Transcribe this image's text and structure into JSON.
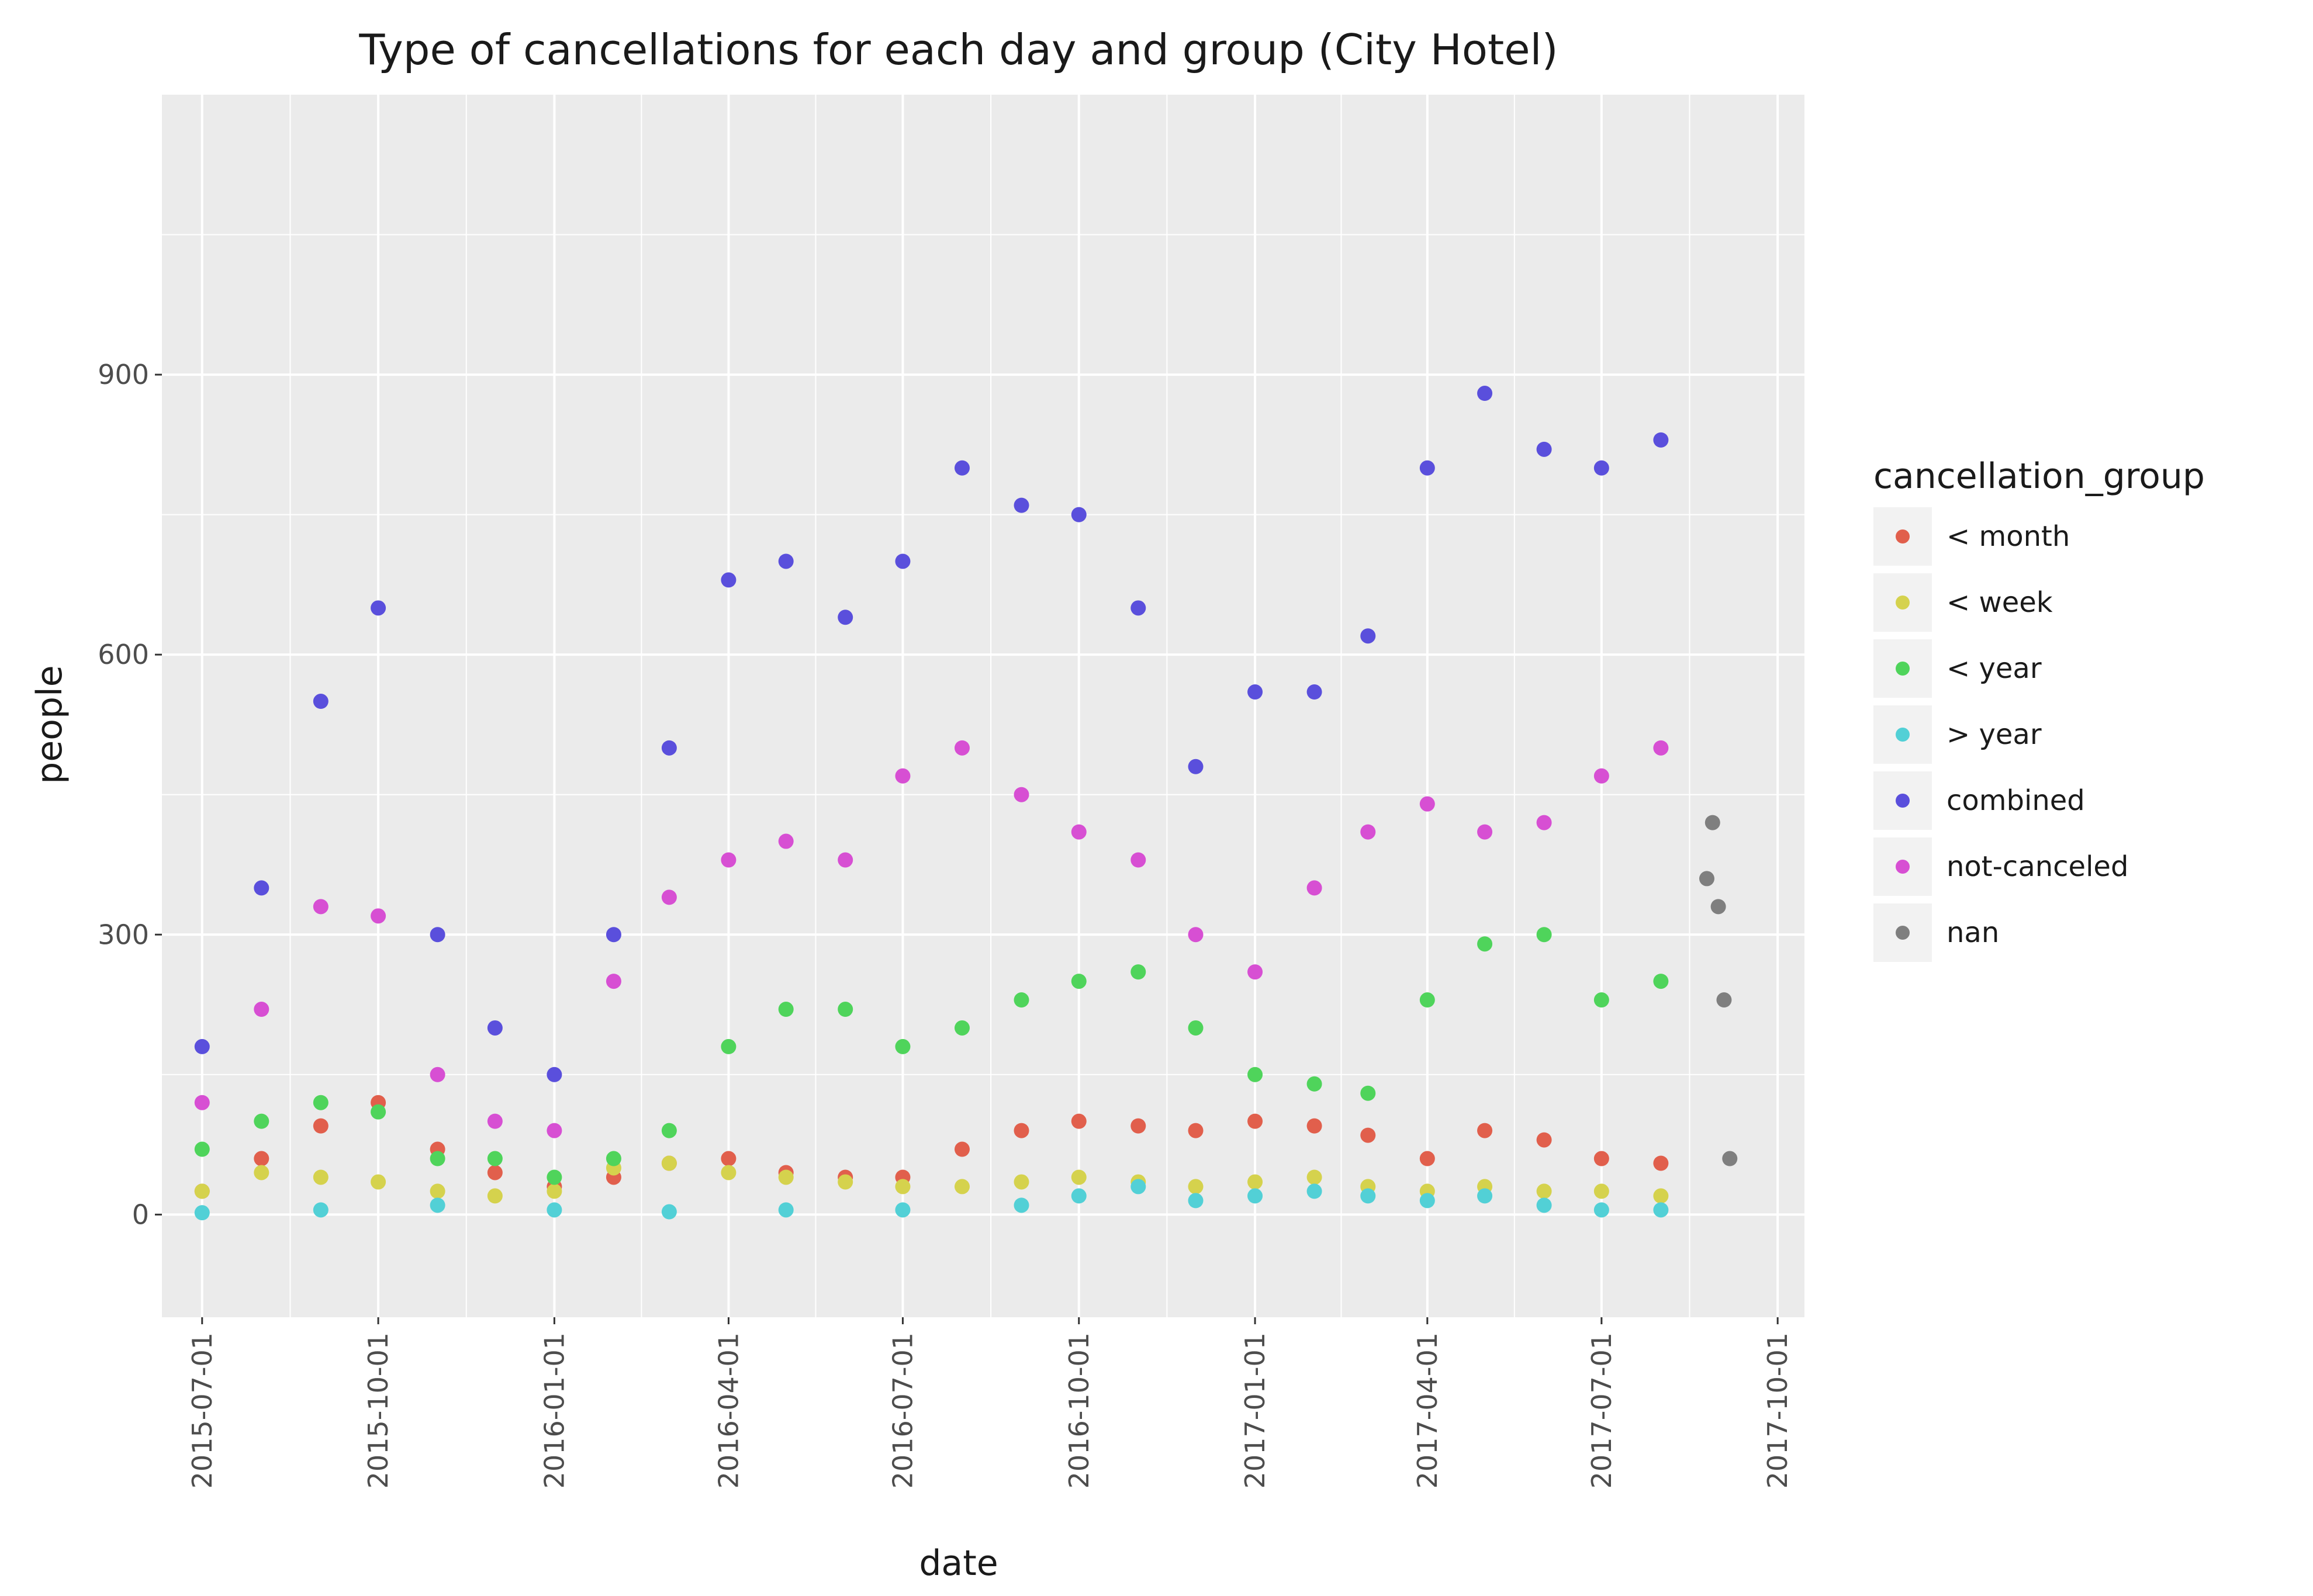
{
  "chart_data": {
    "type": "scatter",
    "title": "Type of cancellations for each day and group (City Hotel)",
    "xlabel": "date",
    "ylabel": "people",
    "x_range": [
      "2015-06-10",
      "2017-10-15"
    ],
    "ylim": [
      -110,
      1200
    ],
    "y_ticks": [
      0,
      300,
      600,
      900
    ],
    "x_ticks": [
      "2015-07-01",
      "2015-10-01",
      "2016-01-01",
      "2016-04-01",
      "2016-07-01",
      "2016-10-01",
      "2017-01-01",
      "2017-04-01",
      "2017-07-01",
      "2017-10-01"
    ],
    "grid": true,
    "legend_title": "cancellation_group",
    "legend_position": "right",
    "series": [
      {
        "name": "< month",
        "color": "#e15f4c",
        "x": [
          "2015-07-01",
          "2015-08-01",
          "2015-09-01",
          "2015-10-01",
          "2015-11-01",
          "2015-12-01",
          "2016-01-01",
          "2016-02-01",
          "2016-03-01",
          "2016-04-01",
          "2016-05-01",
          "2016-06-01",
          "2016-07-01",
          "2016-08-01",
          "2016-09-01",
          "2016-10-01",
          "2016-11-01",
          "2016-12-01",
          "2017-01-01",
          "2017-02-01",
          "2017-03-01",
          "2017-04-01",
          "2017-05-01",
          "2017-06-01",
          "2017-07-01",
          "2017-08-01"
        ],
        "values": [
          25,
          60,
          95,
          120,
          70,
          45,
          30,
          40,
          55,
          60,
          45,
          40,
          40,
          70,
          90,
          100,
          95,
          90,
          100,
          95,
          85,
          60,
          90,
          80,
          60,
          55
        ]
      },
      {
        "name": "< week",
        "color": "#d5d24d",
        "x": [
          "2015-07-01",
          "2015-08-01",
          "2015-09-01",
          "2015-10-01",
          "2015-11-01",
          "2015-12-01",
          "2016-01-01",
          "2016-02-01",
          "2016-03-01",
          "2016-04-01",
          "2016-05-01",
          "2016-06-01",
          "2016-07-01",
          "2016-08-01",
          "2016-09-01",
          "2016-10-01",
          "2016-11-01",
          "2016-12-01",
          "2017-01-01",
          "2017-02-01",
          "2017-03-01",
          "2017-04-01",
          "2017-05-01",
          "2017-06-01",
          "2017-07-01",
          "2017-08-01"
        ],
        "values": [
          25,
          45,
          40,
          35,
          25,
          20,
          25,
          50,
          55,
          45,
          40,
          35,
          30,
          30,
          35,
          40,
          35,
          30,
          35,
          40,
          30,
          25,
          30,
          25,
          25,
          20
        ]
      },
      {
        "name": "< year",
        "color": "#4fd45b",
        "x": [
          "2015-07-01",
          "2015-08-01",
          "2015-09-01",
          "2015-10-01",
          "2015-11-01",
          "2015-12-01",
          "2016-01-01",
          "2016-02-01",
          "2016-03-01",
          "2016-04-01",
          "2016-05-01",
          "2016-06-01",
          "2016-07-01",
          "2016-08-01",
          "2016-09-01",
          "2016-10-01",
          "2016-11-01",
          "2016-12-01",
          "2017-01-01",
          "2017-02-01",
          "2017-03-01",
          "2017-04-01",
          "2017-05-01",
          "2017-06-01",
          "2017-07-01",
          "2017-08-01"
        ],
        "values": [
          70,
          100,
          120,
          110,
          60,
          60,
          40,
          60,
          90,
          180,
          220,
          220,
          180,
          200,
          230,
          250,
          260,
          200,
          150,
          140,
          130,
          230,
          290,
          300,
          230,
          250
        ]
      },
      {
        "name": "> year",
        "color": "#52d0d6",
        "x": [
          "2015-07-01",
          "2015-09-01",
          "2015-11-01",
          "2016-01-01",
          "2016-03-01",
          "2016-05-01",
          "2016-07-01",
          "2016-09-01",
          "2016-10-01",
          "2016-11-01",
          "2016-12-01",
          "2017-01-01",
          "2017-02-01",
          "2017-03-01",
          "2017-04-01",
          "2017-05-01",
          "2017-06-01",
          "2017-07-01",
          "2017-08-01"
        ],
        "values": [
          2,
          5,
          10,
          5,
          3,
          5,
          5,
          10,
          20,
          30,
          15,
          20,
          25,
          20,
          15,
          20,
          10,
          5,
          5
        ]
      },
      {
        "name": "combined",
        "color": "#5a4fdc",
        "x": [
          "2015-07-01",
          "2015-08-01",
          "2015-09-01",
          "2015-10-01",
          "2015-11-01",
          "2015-12-01",
          "2016-01-01",
          "2016-02-01",
          "2016-03-01",
          "2016-04-01",
          "2016-05-01",
          "2016-06-01",
          "2016-07-01",
          "2016-08-01",
          "2016-09-01",
          "2016-10-01",
          "2016-11-01",
          "2016-12-01",
          "2017-01-01",
          "2017-02-01",
          "2017-03-01",
          "2017-04-01",
          "2017-05-01",
          "2017-06-01",
          "2017-07-01",
          "2017-08-01"
        ],
        "values": [
          180,
          350,
          550,
          650,
          300,
          200,
          150,
          300,
          500,
          680,
          700,
          640,
          700,
          800,
          760,
          750,
          650,
          480,
          560,
          560,
          620,
          800,
          880,
          820,
          800,
          830
        ]
      },
      {
        "name": "not-canceled",
        "color": "#d74fd3",
        "x": [
          "2015-07-01",
          "2015-08-01",
          "2015-09-01",
          "2015-10-01",
          "2015-11-01",
          "2015-12-01",
          "2016-01-01",
          "2016-02-01",
          "2016-03-01",
          "2016-04-01",
          "2016-05-01",
          "2016-06-01",
          "2016-07-01",
          "2016-08-01",
          "2016-09-01",
          "2016-10-01",
          "2016-11-01",
          "2016-12-01",
          "2017-01-01",
          "2017-02-01",
          "2017-03-01",
          "2017-04-01",
          "2017-05-01",
          "2017-06-01",
          "2017-07-01",
          "2017-08-01"
        ],
        "values": [
          120,
          220,
          330,
          320,
          150,
          100,
          90,
          250,
          340,
          380,
          400,
          380,
          470,
          500,
          450,
          410,
          380,
          300,
          260,
          350,
          410,
          440,
          410,
          420,
          470,
          500
        ]
      },
      {
        "name": "nan",
        "color": "#7f7f7f",
        "x": [
          "2017-08-25",
          "2017-08-28",
          "2017-08-31",
          "2017-09-03",
          "2017-09-06"
        ],
        "values": [
          360,
          420,
          330,
          230,
          60
        ]
      }
    ]
  }
}
